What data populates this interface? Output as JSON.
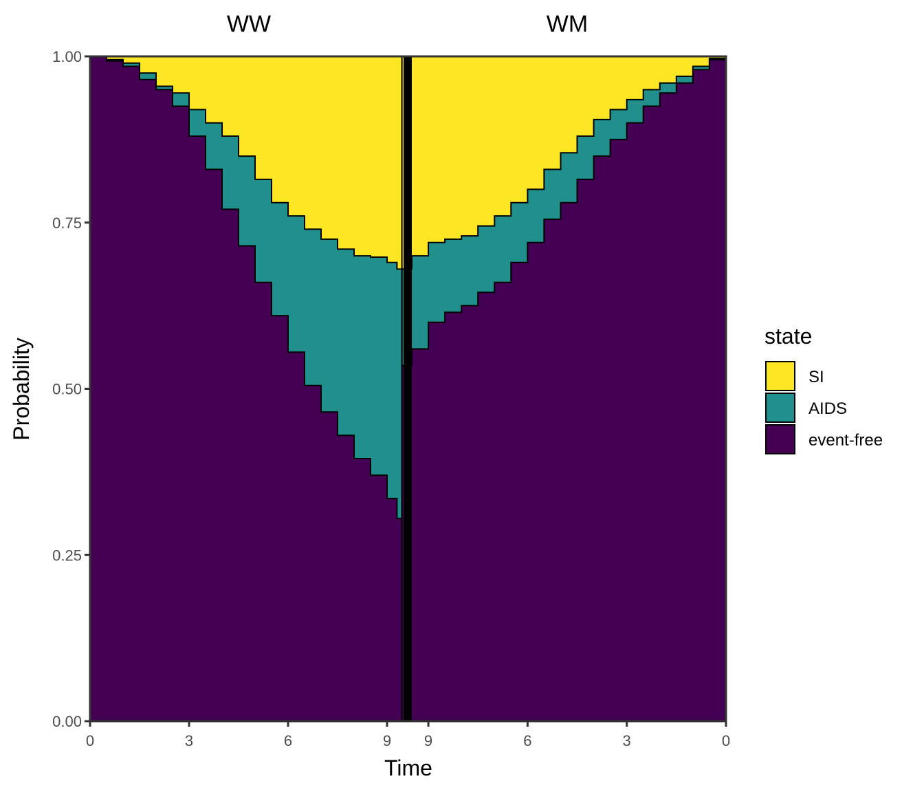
{
  "chart_data": {
    "type": "area",
    "facets": [
      "WW",
      "WM"
    ],
    "xlabel": "Time",
    "ylabel": "Probability",
    "ylim": [
      0,
      1
    ],
    "xlim": [
      0,
      9.5
    ],
    "x_ticks": [
      0,
      3,
      6,
      9
    ],
    "y_ticks": [
      "0.00",
      "0.25",
      "0.50",
      "0.75",
      "1.00"
    ],
    "stacking": "cumulative, event-free at bottom",
    "legend": {
      "title": "state",
      "position": "right",
      "entries": [
        {
          "name": "SI",
          "color": "#FDE725"
        },
        {
          "name": "AIDS",
          "color": "#21908C"
        },
        {
          "name": "event-free",
          "color": "#440154"
        }
      ]
    },
    "panels": [
      {
        "facet": "WW",
        "x_direction": "left-to-right",
        "x": [
          0,
          0.5,
          1,
          1.5,
          2,
          2.5,
          3,
          3.5,
          4,
          4.5,
          5,
          5.5,
          6,
          6.5,
          7,
          7.5,
          8,
          8.5,
          9,
          9.3,
          9.8
        ],
        "series": [
          {
            "name": "event-free",
            "values": [
              1.0,
              0.993,
              0.985,
              0.965,
              0.95,
              0.925,
              0.88,
              0.83,
              0.77,
              0.715,
              0.66,
              0.61,
              0.555,
              0.505,
              0.465,
              0.43,
              0.395,
              0.37,
              0.335,
              0.305,
              0.285
            ]
          },
          {
            "name": "AIDS",
            "values": [
              1.0,
              0.995,
              0.99,
              0.975,
              0.955,
              0.945,
              0.92,
              0.9,
              0.88,
              0.85,
              0.815,
              0.78,
              0.76,
              0.74,
              0.725,
              0.71,
              0.7,
              0.698,
              0.69,
              0.68,
              0.668
            ]
          },
          {
            "name": "SI",
            "values": [
              1.0,
              1.0,
              1.0,
              1.0,
              1.0,
              1.0,
              1.0,
              1.0,
              1.0,
              1.0,
              1.0,
              1.0,
              1.0,
              1.0,
              1.0,
              1.0,
              1.0,
              1.0,
              1.0,
              1.0,
              1.0
            ]
          }
        ]
      },
      {
        "facet": "WM",
        "x_direction": "right-to-left",
        "x": [
          9.8,
          9.5,
          9.0,
          8.5,
          8.0,
          7.5,
          7.0,
          6.5,
          6.0,
          5.5,
          5.0,
          4.5,
          4.0,
          3.5,
          3.0,
          2.5,
          2.0,
          1.5,
          1.0,
          0.5,
          0
        ],
        "series": [
          {
            "name": "event-free",
            "values": [
              0.535,
              0.56,
              0.6,
              0.615,
              0.625,
              0.645,
              0.66,
              0.69,
              0.72,
              0.755,
              0.78,
              0.815,
              0.85,
              0.875,
              0.9,
              0.925,
              0.945,
              0.96,
              0.98,
              0.995,
              1.0
            ]
          },
          {
            "name": "AIDS",
            "values": [
              0.68,
              0.7,
              0.72,
              0.725,
              0.73,
              0.745,
              0.76,
              0.78,
              0.8,
              0.83,
              0.855,
              0.88,
              0.905,
              0.92,
              0.935,
              0.95,
              0.96,
              0.97,
              0.985,
              0.997,
              1.0
            ]
          },
          {
            "name": "SI",
            "values": [
              1.0,
              1.0,
              1.0,
              1.0,
              1.0,
              1.0,
              1.0,
              1.0,
              1.0,
              1.0,
              1.0,
              1.0,
              1.0,
              1.0,
              1.0,
              1.0,
              1.0,
              1.0,
              1.0,
              1.0,
              1.0
            ]
          }
        ]
      }
    ]
  }
}
